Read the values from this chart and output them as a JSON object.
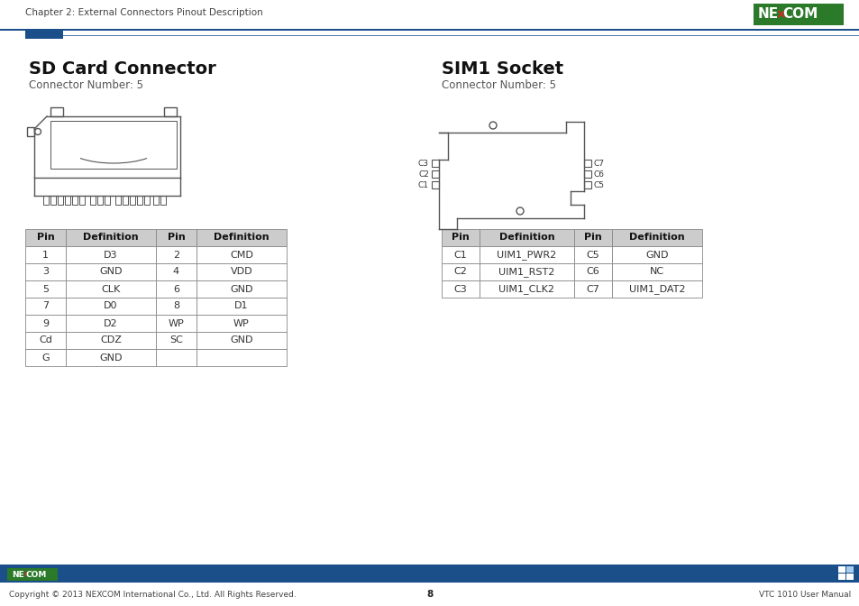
{
  "header_text": "Chapter 2: External Connectors Pinout Description",
  "section1_title": "SD Card Connector",
  "section1_sub": "Connector Number: 5",
  "section2_title": "SIM1 Socket",
  "section2_sub": "Connector Number: 5",
  "sd_table_headers": [
    "Pin",
    "Definition",
    "Pin",
    "Definition"
  ],
  "sd_table_rows": [
    [
      "1",
      "D3",
      "2",
      "CMD"
    ],
    [
      "3",
      "GND",
      "4",
      "VDD"
    ],
    [
      "5",
      "CLK",
      "6",
      "GND"
    ],
    [
      "7",
      "D0",
      "8",
      "D1"
    ],
    [
      "9",
      "D2",
      "WP",
      "WP"
    ],
    [
      "Cd",
      "CDZ",
      "SC",
      "GND"
    ],
    [
      "G",
      "GND",
      "",
      ""
    ]
  ],
  "sim_table_headers": [
    "Pin",
    "Definition",
    "Pin",
    "Definition"
  ],
  "sim_table_rows": [
    [
      "C1",
      "UIM1_PWR2",
      "C5",
      "GND"
    ],
    [
      "C2",
      "UIM1_RST2",
      "C6",
      "NC"
    ],
    [
      "C3",
      "UIM1_CLK2",
      "C7",
      "UIM1_DAT2"
    ]
  ],
  "footer_copyright": "Copyright © 2013 NEXCOM International Co., Ltd. All Rights Reserved.",
  "footer_page": "8",
  "footer_manual": "VTC 1010 User Manual",
  "header_blue": "#1a4f8a",
  "nexcom_green": "#2a7a2a",
  "bg_color": "#ffffff",
  "table_hdr_bg": "#cccccc",
  "line_color": "#555555"
}
